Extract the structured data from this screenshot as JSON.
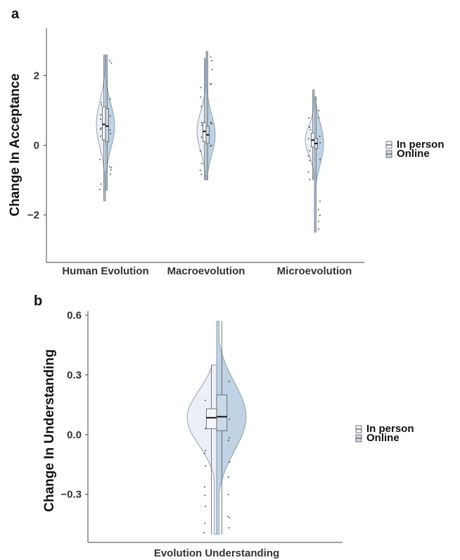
{
  "figure": {
    "colors": {
      "in_person_fill": "#e6e9f2",
      "online_fill": "#aac4dc",
      "outline": "#7d8fa8",
      "median": "#111111"
    }
  },
  "chart_data": [
    {
      "panel": "a",
      "type": "violin",
      "ylabel": "Change In Acceptance",
      "xlabel": "",
      "ylim": [
        -3.2,
        3.2
      ],
      "yticks": [
        -2,
        0,
        2
      ],
      "yticklabels": [
        "−2",
        "0",
        "2"
      ],
      "categories": [
        "Human Evolution",
        "Macroevolution",
        "Microevolution"
      ],
      "legend": {
        "position": "right",
        "entries": [
          "In person",
          "Online"
        ]
      },
      "series": [
        {
          "name": "In person",
          "range": [
            [
              -1.6,
              2.6
            ],
            [
              -1.0,
              2.5
            ],
            [
              -1.0,
              1.6
            ]
          ],
          "q1": [
            0.15,
            0.1,
            -0.05
          ],
          "median": [
            0.6,
            0.4,
            0.15
          ],
          "q3": [
            1.1,
            0.65,
            0.35
          ]
        },
        {
          "name": "Online",
          "range": [
            [
              -1.3,
              2.6
            ],
            [
              -1.0,
              2.7
            ],
            [
              -2.5,
              1.4
            ]
          ],
          "q1": [
            0.1,
            0.05,
            -0.1
          ],
          "median": [
            0.55,
            0.3,
            0.05
          ],
          "q3": [
            1.05,
            0.55,
            0.2
          ]
        }
      ]
    },
    {
      "panel": "b",
      "type": "violin",
      "ylabel": "Change In Understanding",
      "xlabel": "",
      "ylim": [
        -0.52,
        0.6
      ],
      "yticks": [
        -0.3,
        0.0,
        0.3,
        0.6
      ],
      "yticklabels": [
        "−0.3",
        "0.0",
        "0.3",
        "0.6"
      ],
      "categories": [
        "Evolution Understanding"
      ],
      "legend": {
        "position": "right",
        "entries": [
          "In person",
          "Online"
        ]
      },
      "series": [
        {
          "name": "In person",
          "range": [
            [
              -0.5,
              0.35
            ]
          ],
          "q1": [
            0.03
          ],
          "median": [
            0.085
          ],
          "q3": [
            0.13
          ]
        },
        {
          "name": "Online",
          "range": [
            [
              -0.5,
              0.57
            ]
          ],
          "q1": [
            0.02
          ],
          "median": [
            0.09
          ],
          "q3": [
            0.2
          ]
        }
      ]
    }
  ]
}
